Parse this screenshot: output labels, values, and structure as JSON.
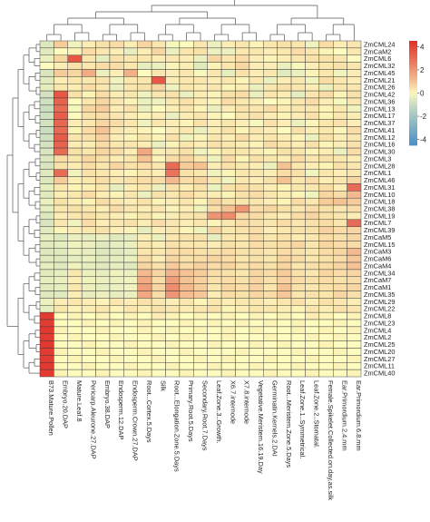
{
  "chart_data": {
    "type": "heatmap",
    "rows": [
      "ZmCML24",
      "ZmCaM2",
      "ZmCML6",
      "ZmCML32",
      "ZmCML45",
      "ZmCML21",
      "ZmCML26",
      "ZmCML42",
      "ZmCML36",
      "ZmCML13",
      "ZmCML17",
      "ZmCML37",
      "ZmCML41",
      "ZmCML12",
      "ZmCML16",
      "ZmCML30",
      "ZmCML3",
      "ZmCML28",
      "ZmCML1",
      "ZmCML46",
      "ZmCML31",
      "ZmCML10",
      "ZmCML18",
      "ZmCML38",
      "ZmCML19",
      "ZmCML7",
      "ZmCML39",
      "ZmCaM5",
      "ZmCML15",
      "ZmCaM3",
      "ZmCaM6",
      "ZmCaM4",
      "ZmCML34",
      "ZmCaM7",
      "ZmCaM1",
      "ZmCML35",
      "ZmCML29",
      "ZmCML22",
      "ZmCML8",
      "ZmCML23",
      "ZmCML4",
      "ZmCML2",
      "ZmCML25",
      "ZmCML20",
      "ZmCML27",
      "ZmCML11",
      "ZmCML40"
    ],
    "columns": [
      "B73.Mature.Pollen",
      "Embryo.20.DAP",
      "Mature.Leaf.8",
      "Pericarp.Aleurone.27.DAP",
      "Embryo.38.DAP",
      "Endosperm.12.DAP",
      "Endosperm.Crown.27.DAP",
      "Root...Cortex.5.Days",
      "Silk",
      "Root...Elongation.Zone.5.Days",
      "Primary.Root.5.Days",
      "Secondary.Root.7.Days",
      "Leaf.Zone.3..Growth.",
      "X6.7.internode",
      "X7.8.internode",
      "Vegetative.Meristem.16.19.Day",
      "Germinatin.Kernels.2.DAI",
      "Root...Meristem.Zone.5.Days",
      "Leaf.Zone.1..Symmetrical.",
      "Leaf.Zone.2..Stomatal.",
      "Female.Spikelet.Collected.on.day.as.silk",
      "Ear.Primordium.2.4.mm",
      "Ear.Primordium.6.8.mm"
    ],
    "values": [
      [
        -0.6,
        0.8,
        -0.2,
        0.2,
        0.4,
        0.5,
        0.2,
        0.6,
        0.3,
        -0.1,
        0.0,
        0.3,
        -0.3,
        0.2,
        0.3,
        0.1,
        0.3,
        0.4,
        0.3,
        -0.2,
        0.5,
        0.2,
        0.3
      ],
      [
        -0.5,
        0.0,
        0.1,
        0.5,
        0.3,
        0.2,
        -0.4,
        0.2,
        0.6,
        -0.3,
        0.3,
        0.4,
        -0.3,
        -0.3,
        0.3,
        0.3,
        0.2,
        0.3,
        0.5,
        0.3,
        0.1,
        0.0,
        0.3
      ],
      [
        -0.3,
        0.6,
        3.5,
        0.3,
        -0.4,
        0.4,
        0.3,
        0.3,
        0.2,
        0.3,
        0.2,
        -0.3,
        0.6,
        0.3,
        0.5,
        0.2,
        0.1,
        0.2,
        0.3,
        0.4,
        0.4,
        0.3,
        0.0
      ],
      [
        0.0,
        0.2,
        0.4,
        0.3,
        0.5,
        0.5,
        0.3,
        -0.4,
        -0.3,
        0.1,
        0.2,
        -0.5,
        0.1,
        0.3,
        0.6,
        0.2,
        0.2,
        -0.3,
        -0.1,
        0.2,
        0.3,
        0.4,
        0.3
      ],
      [
        -0.7,
        0.8,
        0.6,
        1.5,
        -0.3,
        0.2,
        1.4,
        0.0,
        0.3,
        0.2,
        0.3,
        -0.1,
        0.3,
        -0.4,
        0.4,
        0.2,
        0.3,
        -0.5,
        -0.3,
        0.1,
        0.3,
        -0.2,
        0.2
      ],
      [
        -0.5,
        0.2,
        0.3,
        0.3,
        0.4,
        -0.2,
        0.3,
        0.3,
        3.5,
        0.2,
        0.3,
        0.3,
        0.2,
        0.3,
        0.1,
        0.3,
        -0.3,
        0.2,
        0.3,
        -0.2,
        0.5,
        0.3,
        0.2
      ],
      [
        -0.4,
        0.3,
        0.2,
        0.5,
        0.3,
        -0.3,
        0.3,
        0.4,
        0.6,
        -0.2,
        0.3,
        0.2,
        0.3,
        0.1,
        0.2,
        -0.3,
        0.3,
        0.4,
        0.3,
        0.2,
        -0.3,
        0.3,
        0.3
      ],
      [
        -0.8,
        3.5,
        0.4,
        0.1,
        0.5,
        0.2,
        0.3,
        -0.2,
        0.3,
        0.4,
        -0.3,
        0.2,
        0.1,
        0.4,
        0.5,
        -0.3,
        0.3,
        0.2,
        -0.4,
        0.3,
        0.5,
        0.1,
        0.4
      ],
      [
        -0.9,
        3.2,
        0.0,
        0.3,
        0.6,
        0.3,
        0.1,
        -0.3,
        -0.2,
        0.3,
        0.4,
        0.2,
        0.1,
        0.5,
        0.3,
        0.2,
        0.0,
        0.1,
        0.3,
        0.5,
        0.2,
        -0.1,
        0.3
      ],
      [
        -1.0,
        3.0,
        -0.1,
        0.6,
        0.8,
        0.2,
        0.4,
        -0.3,
        0.0,
        0.2,
        0.3,
        0.1,
        -0.3,
        0.2,
        0.4,
        0.3,
        0.5,
        0.2,
        0.3,
        0.3,
        0.1,
        0.3,
        -0.2
      ],
      [
        -0.9,
        3.3,
        0.0,
        0.4,
        0.5,
        0.3,
        0.2,
        0.1,
        0.2,
        -0.3,
        0.2,
        0.3,
        0.1,
        0.0,
        0.3,
        0.4,
        0.2,
        0.1,
        0.2,
        0.4,
        0.1,
        0.3,
        0.2
      ],
      [
        -0.8,
        3.1,
        0.2,
        0.3,
        0.6,
        0.5,
        0.3,
        -0.2,
        0.3,
        0.2,
        0.1,
        0.4,
        0.2,
        0.3,
        0.2,
        -0.1,
        0.4,
        0.2,
        -0.3,
        0.1,
        0.3,
        0.4,
        0.2
      ],
      [
        -1.0,
        3.0,
        0.1,
        0.5,
        1.0,
        0.3,
        0.2,
        0.1,
        0.0,
        0.2,
        0.3,
        -0.3,
        0.2,
        0.4,
        0.1,
        0.3,
        0.2,
        0.0,
        0.4,
        0.2,
        0.3,
        0.1,
        0.5
      ],
      [
        -0.9,
        3.4,
        0.3,
        0.4,
        0.7,
        0.2,
        0.1,
        0.3,
        0.1,
        0.4,
        -0.2,
        0.1,
        0.3,
        0.2,
        0.5,
        0.2,
        0.3,
        0.2,
        0.1,
        -0.3,
        0.4,
        0.2,
        0.3
      ],
      [
        -0.8,
        3.2,
        0.2,
        0.2,
        0.5,
        0.3,
        0.3,
        0.2,
        -0.3,
        0.1,
        0.3,
        0.2,
        0.4,
        0.3,
        0.2,
        0.1,
        0.5,
        0.3,
        0.2,
        0.4,
        0.1,
        0.2,
        0.4
      ],
      [
        -0.7,
        3.0,
        0.4,
        0.3,
        0.6,
        0.5,
        0.2,
        1.6,
        0.2,
        0.3,
        0.4,
        -0.2,
        0.1,
        0.3,
        0.3,
        0.2,
        0.1,
        0.4,
        0.3,
        0.1,
        0.2,
        -0.3,
        0.5
      ],
      [
        -0.6,
        0.5,
        0.3,
        0.6,
        0.4,
        0.2,
        0.3,
        1.0,
        0.1,
        0.5,
        0.6,
        0.3,
        -0.2,
        0.5,
        0.1,
        0.4,
        0.3,
        0.2,
        0.5,
        0.3,
        0.4,
        0.3,
        0.2
      ],
      [
        -0.7,
        0.4,
        0.2,
        0.5,
        0.3,
        0.6,
        0.4,
        0.5,
        0.3,
        3.0,
        0.8,
        1.0,
        0.2,
        0.4,
        0.3,
        0.2,
        -0.3,
        1.0,
        0.3,
        0.2,
        0.1,
        0.4,
        0.3
      ],
      [
        -0.5,
        3.0,
        -0.2,
        0.4,
        0.3,
        0.2,
        0.1,
        0.3,
        0.2,
        2.8,
        0.4,
        0.3,
        -0.2,
        0.1,
        0.3,
        0.3,
        0.2,
        0.5,
        0.4,
        -0.2,
        0.3,
        0.2,
        0.3
      ],
      [
        -0.6,
        0.8,
        0.2,
        0.3,
        0.5,
        0.3,
        0.4,
        0.5,
        0.5,
        1.2,
        0.5,
        0.6,
        0.3,
        -0.2,
        0.3,
        0.2,
        0.4,
        1.0,
        0.3,
        0.5,
        0.2,
        0.3,
        0.6
      ],
      [
        -0.4,
        0.3,
        0.1,
        0.2,
        0.3,
        -0.4,
        0.2,
        0.3,
        -0.3,
        0.4,
        0.2,
        0.4,
        -0.3,
        0.4,
        0.5,
        0.4,
        0.2,
        0.1,
        0.3,
        0.3,
        0.5,
        0.2,
        3.0
      ],
      [
        -0.5,
        0.2,
        0.3,
        0.5,
        0.2,
        0.1,
        0.3,
        -0.3,
        0.4,
        0.3,
        0.5,
        0.3,
        0.2,
        0.1,
        0.4,
        0.5,
        0.3,
        0.2,
        0.1,
        -0.2,
        0.6,
        0.5,
        1.2
      ],
      [
        -0.3,
        0.4,
        0.2,
        0.1,
        0.5,
        0.3,
        0.2,
        0.4,
        0.1,
        0.2,
        0.3,
        0.1,
        0.6,
        0.4,
        0.3,
        0.3,
        0.2,
        0.1,
        0.5,
        0.3,
        0.8,
        1.0,
        0.8
      ],
      [
        -0.4,
        0.3,
        0.4,
        0.3,
        0.2,
        0.5,
        0.3,
        0.2,
        0.3,
        0.1,
        0.2,
        -0.2,
        0.5,
        1.0,
        2.0,
        0.5,
        0.6,
        0.4,
        0.3,
        0.5,
        0.4,
        0.3,
        0.5
      ],
      [
        -0.6,
        0.2,
        0.3,
        0.4,
        0.3,
        0.2,
        0.1,
        0.3,
        0.1,
        0.2,
        0.3,
        0.4,
        2.0,
        2.2,
        0.6,
        0.5,
        0.3,
        0.2,
        0.5,
        0.6,
        0.4,
        0.3,
        0.2
      ],
      [
        -0.7,
        0.3,
        -0.2,
        0.5,
        0.2,
        0.3,
        0.4,
        0.2,
        0.5,
        0.3,
        0.2,
        0.3,
        0.1,
        0.3,
        0.5,
        0.4,
        0.3,
        0.5,
        0.3,
        0.4,
        0.5,
        0.3,
        3.0
      ],
      [
        -0.5,
        0.1,
        0.2,
        0.3,
        0.4,
        0.2,
        0.1,
        -0.4,
        0.2,
        0.3,
        0.1,
        -0.2,
        0.6,
        0.3,
        0.4,
        0.5,
        0.2,
        0.3,
        0.4,
        0.4,
        0.7,
        0.5,
        0.6
      ],
      [
        -0.4,
        -0.6,
        -0.3,
        -0.4,
        -0.3,
        -0.5,
        -0.4,
        0.2,
        -0.3,
        0.3,
        0.4,
        0.4,
        -0.4,
        0.3,
        0.3,
        0.5,
        0.3,
        0.4,
        0.2,
        0.3,
        0.5,
        0.4,
        0.6
      ],
      [
        -0.5,
        -0.4,
        -0.2,
        -0.3,
        -0.5,
        -0.4,
        -0.3,
        0.3,
        0.2,
        0.4,
        0.3,
        0.3,
        0.2,
        0.4,
        0.3,
        0.5,
        0.4,
        0.5,
        0.6,
        0.3,
        0.6,
        0.5,
        0.5
      ],
      [
        -0.6,
        -0.5,
        -0.3,
        -0.4,
        -0.6,
        -0.5,
        -0.4,
        0.3,
        0.3,
        0.5,
        0.5,
        0.4,
        0.4,
        0.5,
        0.4,
        0.4,
        0.3,
        0.5,
        0.4,
        0.3,
        0.5,
        0.6,
        1.2
      ],
      [
        -0.5,
        -0.6,
        -0.4,
        -0.3,
        -0.5,
        -0.4,
        -0.3,
        0.5,
        0.2,
        0.6,
        0.4,
        0.5,
        0.6,
        0.5,
        0.3,
        0.4,
        0.3,
        0.6,
        0.5,
        0.3,
        0.4,
        0.5,
        0.9
      ],
      [
        -0.4,
        -0.5,
        -0.2,
        -0.4,
        -0.5,
        -0.4,
        -0.5,
        0.6,
        0.4,
        0.8,
        0.5,
        0.7,
        0.5,
        0.6,
        0.4,
        0.5,
        0.4,
        0.6,
        0.3,
        0.4,
        0.5,
        0.6,
        1.0
      ],
      [
        -0.5,
        -0.4,
        0.3,
        -0.3,
        -0.4,
        -0.2,
        -0.3,
        1.2,
        0.6,
        1.3,
        1.0,
        0.8,
        0.5,
        0.4,
        0.3,
        0.6,
        0.5,
        0.8,
        0.4,
        0.3,
        0.6,
        0.5,
        0.6
      ],
      [
        -0.4,
        -0.3,
        0.2,
        -0.2,
        -0.3,
        -0.3,
        -0.2,
        1.5,
        0.5,
        1.8,
        1.0,
        0.7,
        0.4,
        0.5,
        0.4,
        0.6,
        0.4,
        0.7,
        0.5,
        0.4,
        0.5,
        0.4,
        0.5
      ],
      [
        -0.5,
        -0.4,
        0.3,
        -0.3,
        -0.4,
        -0.3,
        -0.2,
        1.8,
        0.6,
        2.2,
        1.2,
        0.8,
        0.3,
        0.6,
        0.5,
        0.7,
        0.3,
        1.0,
        0.4,
        0.3,
        0.4,
        0.5,
        0.6
      ],
      [
        -0.6,
        -0.5,
        0.2,
        -0.4,
        -0.3,
        -0.4,
        -0.3,
        1.6,
        0.5,
        2.0,
        1.1,
        0.9,
        0.2,
        0.5,
        0.4,
        0.6,
        0.5,
        0.9,
        0.3,
        0.4,
        0.3,
        0.6,
        0.4
      ],
      [
        -0.3,
        0.2,
        0.3,
        0.2,
        0.1,
        0.3,
        0.2,
        0.4,
        0.3,
        0.2,
        0.3,
        0.1,
        0.3,
        0.2,
        0.3,
        0.3,
        0.2,
        0.3,
        0.4,
        0.2,
        0.4,
        0.3,
        0.2
      ],
      [
        -0.4,
        0.3,
        0.1,
        0.2,
        0.3,
        0.1,
        0.3,
        0.2,
        0.4,
        0.3,
        0.2,
        0.3,
        0.4,
        0.1,
        0.2,
        0.3,
        0.3,
        0.2,
        0.1,
        0.3,
        0.2,
        0.4,
        0.3
      ],
      [
        4.2,
        0.0,
        0.1,
        0.0,
        0.1,
        0.0,
        0.1,
        0.0,
        0.2,
        0.1,
        0.0,
        0.1,
        0.0,
        0.1,
        0.0,
        0.1,
        0.0,
        0.1,
        0.0,
        0.2,
        0.1,
        0.0,
        0.1
      ],
      [
        4.2,
        0.0,
        0.0,
        0.1,
        0.0,
        0.1,
        0.0,
        0.1,
        0.0,
        0.0,
        0.1,
        0.0,
        0.1,
        0.0,
        0.1,
        0.0,
        0.1,
        0.0,
        0.1,
        0.0,
        0.0,
        0.1,
        0.0
      ],
      [
        4.3,
        0.1,
        0.0,
        0.0,
        0.1,
        0.0,
        0.0,
        0.1,
        0.0,
        0.1,
        0.0,
        0.1,
        0.0,
        0.1,
        0.0,
        0.1,
        0.0,
        0.0,
        0.1,
        0.0,
        0.1,
        0.0,
        0.1
      ],
      [
        4.2,
        0.0,
        0.1,
        0.0,
        0.0,
        0.1,
        0.0,
        0.0,
        0.1,
        0.0,
        0.1,
        0.0,
        0.0,
        0.1,
        0.0,
        0.0,
        0.1,
        0.0,
        0.0,
        0.1,
        0.0,
        0.1,
        0.0
      ],
      [
        4.3,
        0.0,
        0.0,
        0.1,
        0.0,
        0.0,
        0.1,
        0.0,
        0.0,
        0.1,
        0.0,
        0.0,
        0.1,
        0.0,
        0.0,
        0.1,
        0.0,
        0.1,
        0.0,
        0.0,
        0.1,
        0.0,
        0.0
      ],
      [
        4.2,
        0.1,
        0.0,
        0.0,
        0.1,
        0.0,
        0.0,
        0.1,
        0.0,
        0.0,
        0.1,
        0.0,
        0.0,
        0.0,
        0.1,
        0.0,
        0.0,
        0.0,
        0.1,
        0.0,
        0.0,
        0.1,
        0.0
      ],
      [
        4.2,
        0.0,
        0.1,
        0.0,
        0.0,
        0.1,
        0.0,
        0.0,
        0.1,
        0.0,
        0.0,
        0.1,
        0.0,
        0.1,
        0.0,
        0.0,
        0.1,
        0.0,
        0.0,
        0.1,
        0.0,
        0.0,
        0.1
      ],
      [
        4.3,
        0.0,
        0.0,
        0.1,
        0.0,
        0.0,
        0.1,
        0.0,
        0.0,
        0.1,
        0.0,
        0.0,
        0.1,
        0.0,
        0.0,
        0.1,
        0.0,
        0.0,
        0.1,
        0.0,
        0.0,
        0.1,
        0.0
      ],
      [
        4.2,
        0.1,
        0.0,
        0.0,
        0.1,
        0.0,
        0.0,
        0.1,
        0.0,
        0.0,
        0.1,
        0.0,
        0.0,
        0.1,
        0.0,
        0.0,
        0.1,
        0.0,
        0.0,
        0.1,
        0.0,
        0.0,
        0.1
      ]
    ],
    "color_scale": {
      "min": -4.5,
      "mid": 0,
      "max": 4.5,
      "low_color": "#4a90c8",
      "mid_color": "#fdfbbd",
      "high_color": "#e0302a",
      "ticks": [
        4,
        2,
        0,
        -2,
        -4
      ]
    },
    "dendrograms": [
      "rows",
      "columns"
    ],
    "legend_position": "right"
  }
}
